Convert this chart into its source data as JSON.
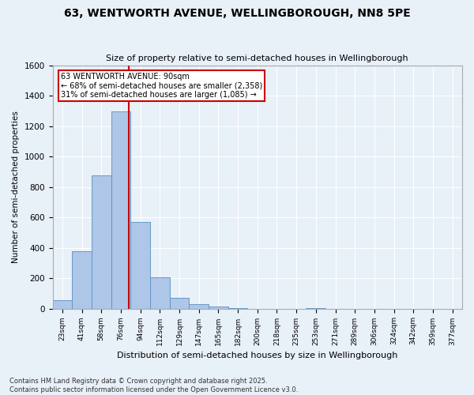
{
  "title": "63, WENTWORTH AVENUE, WELLINGBOROUGH, NN8 5PE",
  "subtitle": "Size of property relative to semi-detached houses in Wellingborough",
  "xlabel": "Distribution of semi-detached houses by size in Wellingborough",
  "ylabel": "Number of semi-detached properties",
  "bin_labels": [
    "23sqm",
    "41sqm",
    "58sqm",
    "76sqm",
    "94sqm",
    "112sqm",
    "129sqm",
    "147sqm",
    "165sqm",
    "182sqm",
    "200sqm",
    "218sqm",
    "235sqm",
    "253sqm",
    "271sqm",
    "289sqm",
    "306sqm",
    "324sqm",
    "342sqm",
    "359sqm",
    "377sqm"
  ],
  "bar_values": [
    55,
    375,
    875,
    1295,
    570,
    205,
    70,
    30,
    12,
    5,
    0,
    0,
    0,
    5,
    0,
    0,
    0,
    0,
    0,
    0,
    0
  ],
  "bar_color": "#aec6e8",
  "bar_edge_color": "#5a8fc0",
  "property_line_label": "63 WENTWORTH AVENUE: 90sqm",
  "annotation_smaller": "← 68% of semi-detached houses are smaller (2,358)",
  "annotation_larger": "31% of semi-detached houses are larger (1,085) →",
  "annotation_box_color": "#ffffff",
  "annotation_box_edge_color": "#cc0000",
  "vline_color": "#cc0000",
  "vline_x": 3.42,
  "ylim": [
    0,
    1600
  ],
  "yticks": [
    0,
    200,
    400,
    600,
    800,
    1000,
    1200,
    1400,
    1600
  ],
  "background_color": "#e8f0f8",
  "grid_color": "#ffffff",
  "footer1": "Contains HM Land Registry data © Crown copyright and database right 2025.",
  "footer2": "Contains public sector information licensed under the Open Government Licence v3.0."
}
